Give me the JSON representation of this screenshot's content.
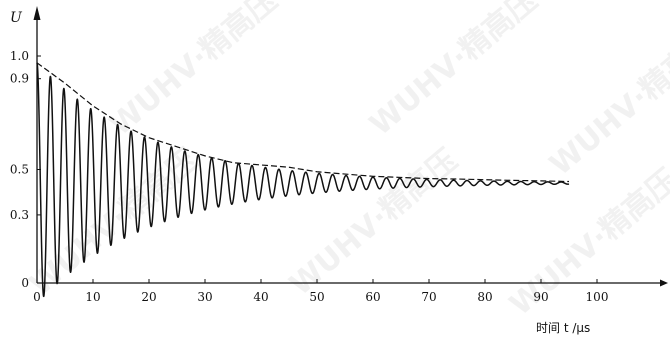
{
  "chart_data": {
    "type": "line",
    "title": "",
    "ylabel": "U",
    "xlabel": "时间 t /μs",
    "xlim": [
      0,
      100
    ],
    "ylim": [
      0,
      1.0
    ],
    "x_ticks": [
      0,
      10,
      20,
      30,
      40,
      50,
      60,
      70,
      80,
      90,
      100
    ],
    "y_ticks": [
      0,
      0.3,
      0.5,
      0.9,
      1.0
    ],
    "y_tick_labels": [
      "0",
      "0.3",
      "0.5",
      "0.9",
      "1.0"
    ],
    "grid": false,
    "legend": "none",
    "series": [
      {
        "style": "solid",
        "color": "#111111",
        "kind": "damped-oscillation",
        "x_range": [
          0,
          95
        ],
        "offset": 0.44,
        "initial_amplitude": 0.53,
        "decay_time_constant_us": 20,
        "period_us": 2.4
      },
      {
        "style": "dashed",
        "color": "#111111",
        "kind": "upper-envelope",
        "x": [
          0,
          5,
          10,
          15,
          20,
          25,
          30,
          35,
          40,
          45,
          50,
          55,
          60,
          65,
          70,
          75,
          80,
          85,
          90,
          95
        ],
        "y": [
          0.97,
          0.88,
          0.78,
          0.7,
          0.64,
          0.6,
          0.56,
          0.53,
          0.52,
          0.51,
          0.49,
          0.48,
          0.47,
          0.465,
          0.46,
          0.458,
          0.455,
          0.452,
          0.45,
          0.447
        ]
      }
    ]
  },
  "watermark": "WUHV·精高压"
}
